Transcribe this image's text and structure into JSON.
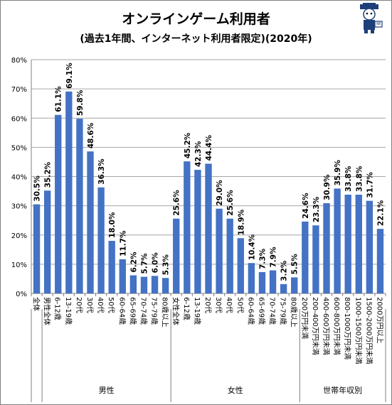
{
  "chart_data": {
    "type": "bar",
    "title": "オンラインゲーム利用者",
    "subtitle": "(過去1年間、インターネット利用者限定)(2020年)",
    "ylim": [
      0,
      80
    ],
    "yticks": [
      "0%",
      "10%",
      "20%",
      "30%",
      "40%",
      "50%",
      "60%",
      "70%",
      "80%"
    ],
    "grid": true,
    "bar_color": "#4472c4",
    "categories": [
      "全体",
      "男性全体",
      "6-12歳",
      "13-19歳",
      "20代",
      "30代",
      "40代",
      "50代",
      "60-64歳",
      "65-69歳",
      "70-74歳",
      "75-79歳",
      "80歳以上",
      "女性全体",
      "6-12歳",
      "13-19歳",
      "20代",
      "30代",
      "40代",
      "50代",
      "60-64歳",
      "65-69歳",
      "70-74歳",
      "75-79歳",
      "80歳以上",
      "200万円未満",
      "200-400万円未満",
      "400-600万円未満",
      "600-800万円未満",
      "800-1000万円未満",
      "1000-1500万円未満",
      "1500-2000万円未満",
      "2000万円以上"
    ],
    "values": [
      30.5,
      35.2,
      61.1,
      69.1,
      59.8,
      48.6,
      36.3,
      18.0,
      11.7,
      6.2,
      5.7,
      6.0,
      5.3,
      25.6,
      45.2,
      42.3,
      44.4,
      29.0,
      25.6,
      18.9,
      10.4,
      7.3,
      7.9,
      3.2,
      5.5,
      24.6,
      23.3,
      30.9,
      35.9,
      33.8,
      33.8,
      31.7,
      22.1
    ],
    "data_labels": [
      "30.5%",
      "35.2%",
      "61.1%",
      "69.1%",
      "59.8%",
      "48.6%",
      "36.3%",
      "18.0%",
      "11.7%",
      "6.2%",
      "5.7%",
      "6.0%",
      "5.3%",
      "25.6%",
      "45.2%",
      "42.3%",
      "44.4%",
      "29.0%",
      "25.6%",
      "18.9%",
      "10.4%",
      "7.3%",
      "7.9%",
      "3.2%",
      "5.5%",
      "24.6%",
      "23.3%",
      "30.9%",
      "35.9%",
      "33.8%",
      "33.8%",
      "31.7%",
      "22.1%"
    ],
    "groups": [
      {
        "label": "男性",
        "start": 1,
        "end": 12
      },
      {
        "label": "女性",
        "start": 13,
        "end": 24
      },
      {
        "label": "世帯年収別",
        "start": 25,
        "end": 32
      }
    ]
  }
}
